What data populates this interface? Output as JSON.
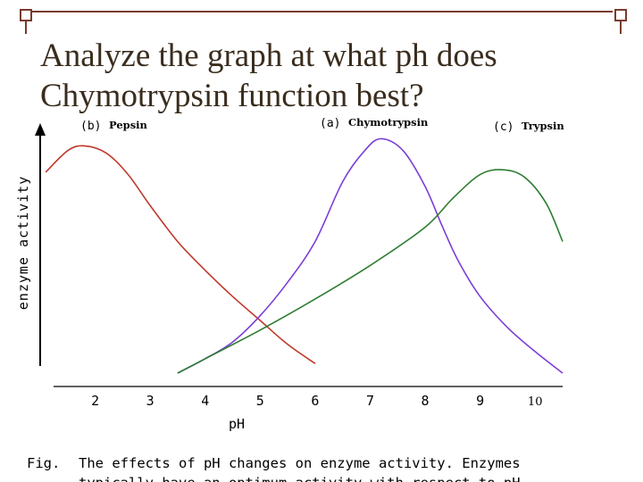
{
  "slide": {
    "title_line1": "Analyze the graph at what ph does",
    "title_line2": "Chymotrypsin function best?"
  },
  "caption": {
    "label": "Fig.",
    "text": "The effects of pH changes on enzyme activity. Enzymes",
    "text_line2": "typically have an optimum activity with respect to pH."
  },
  "colors": {
    "pepsin": "#c0392b",
    "chymotrypsin": "#7b3fd6",
    "trypsin": "#2e7d32",
    "title": "#3a2d1e",
    "accent": "#7a3b2e"
  },
  "chart_data": {
    "type": "line",
    "xlabel": "pH",
    "ylabel": "enzyme activity",
    "xlim": [
      1.0,
      10.5
    ],
    "ylim": [
      0,
      100
    ],
    "x_ticks": [
      "2",
      "3",
      "4",
      "5",
      "6",
      "7",
      "8",
      "9",
      "10"
    ],
    "grid": false,
    "series": [
      {
        "name": "Pepsin",
        "label_prefix": "(b)",
        "color": "#c0392b",
        "points": [
          [
            1.1,
            84
          ],
          [
            1.5,
            93
          ],
          [
            1.8,
            95
          ],
          [
            2.2,
            92
          ],
          [
            2.6,
            83
          ],
          [
            3.0,
            70
          ],
          [
            3.5,
            55
          ],
          [
            4.0,
            43
          ],
          [
            4.5,
            32
          ],
          [
            5.0,
            22
          ],
          [
            5.5,
            12
          ],
          [
            6.0,
            4
          ]
        ]
      },
      {
        "name": "Chymotrypsin",
        "label_prefix": "(a)",
        "color": "#7b3fd6",
        "points": [
          [
            3.5,
            0
          ],
          [
            4.0,
            6
          ],
          [
            4.5,
            13
          ],
          [
            5.0,
            24
          ],
          [
            5.5,
            38
          ],
          [
            6.0,
            55
          ],
          [
            6.5,
            80
          ],
          [
            6.9,
            93
          ],
          [
            7.2,
            98
          ],
          [
            7.6,
            93
          ],
          [
            8.0,
            78
          ],
          [
            8.3,
            62
          ],
          [
            8.6,
            47
          ],
          [
            9.0,
            32
          ],
          [
            9.5,
            19
          ],
          [
            10.0,
            9
          ],
          [
            10.5,
            0
          ]
        ]
      },
      {
        "name": "Trypsin",
        "label_prefix": "(c)",
        "color": "#2e7d32",
        "points": [
          [
            3.5,
            0
          ],
          [
            4.0,
            6
          ],
          [
            5.0,
            18
          ],
          [
            6.0,
            31
          ],
          [
            7.0,
            45
          ],
          [
            8.0,
            61
          ],
          [
            8.5,
            73
          ],
          [
            9.0,
            83
          ],
          [
            9.4,
            85
          ],
          [
            9.8,
            82
          ],
          [
            10.2,
            71
          ],
          [
            10.5,
            55
          ]
        ]
      }
    ]
  }
}
